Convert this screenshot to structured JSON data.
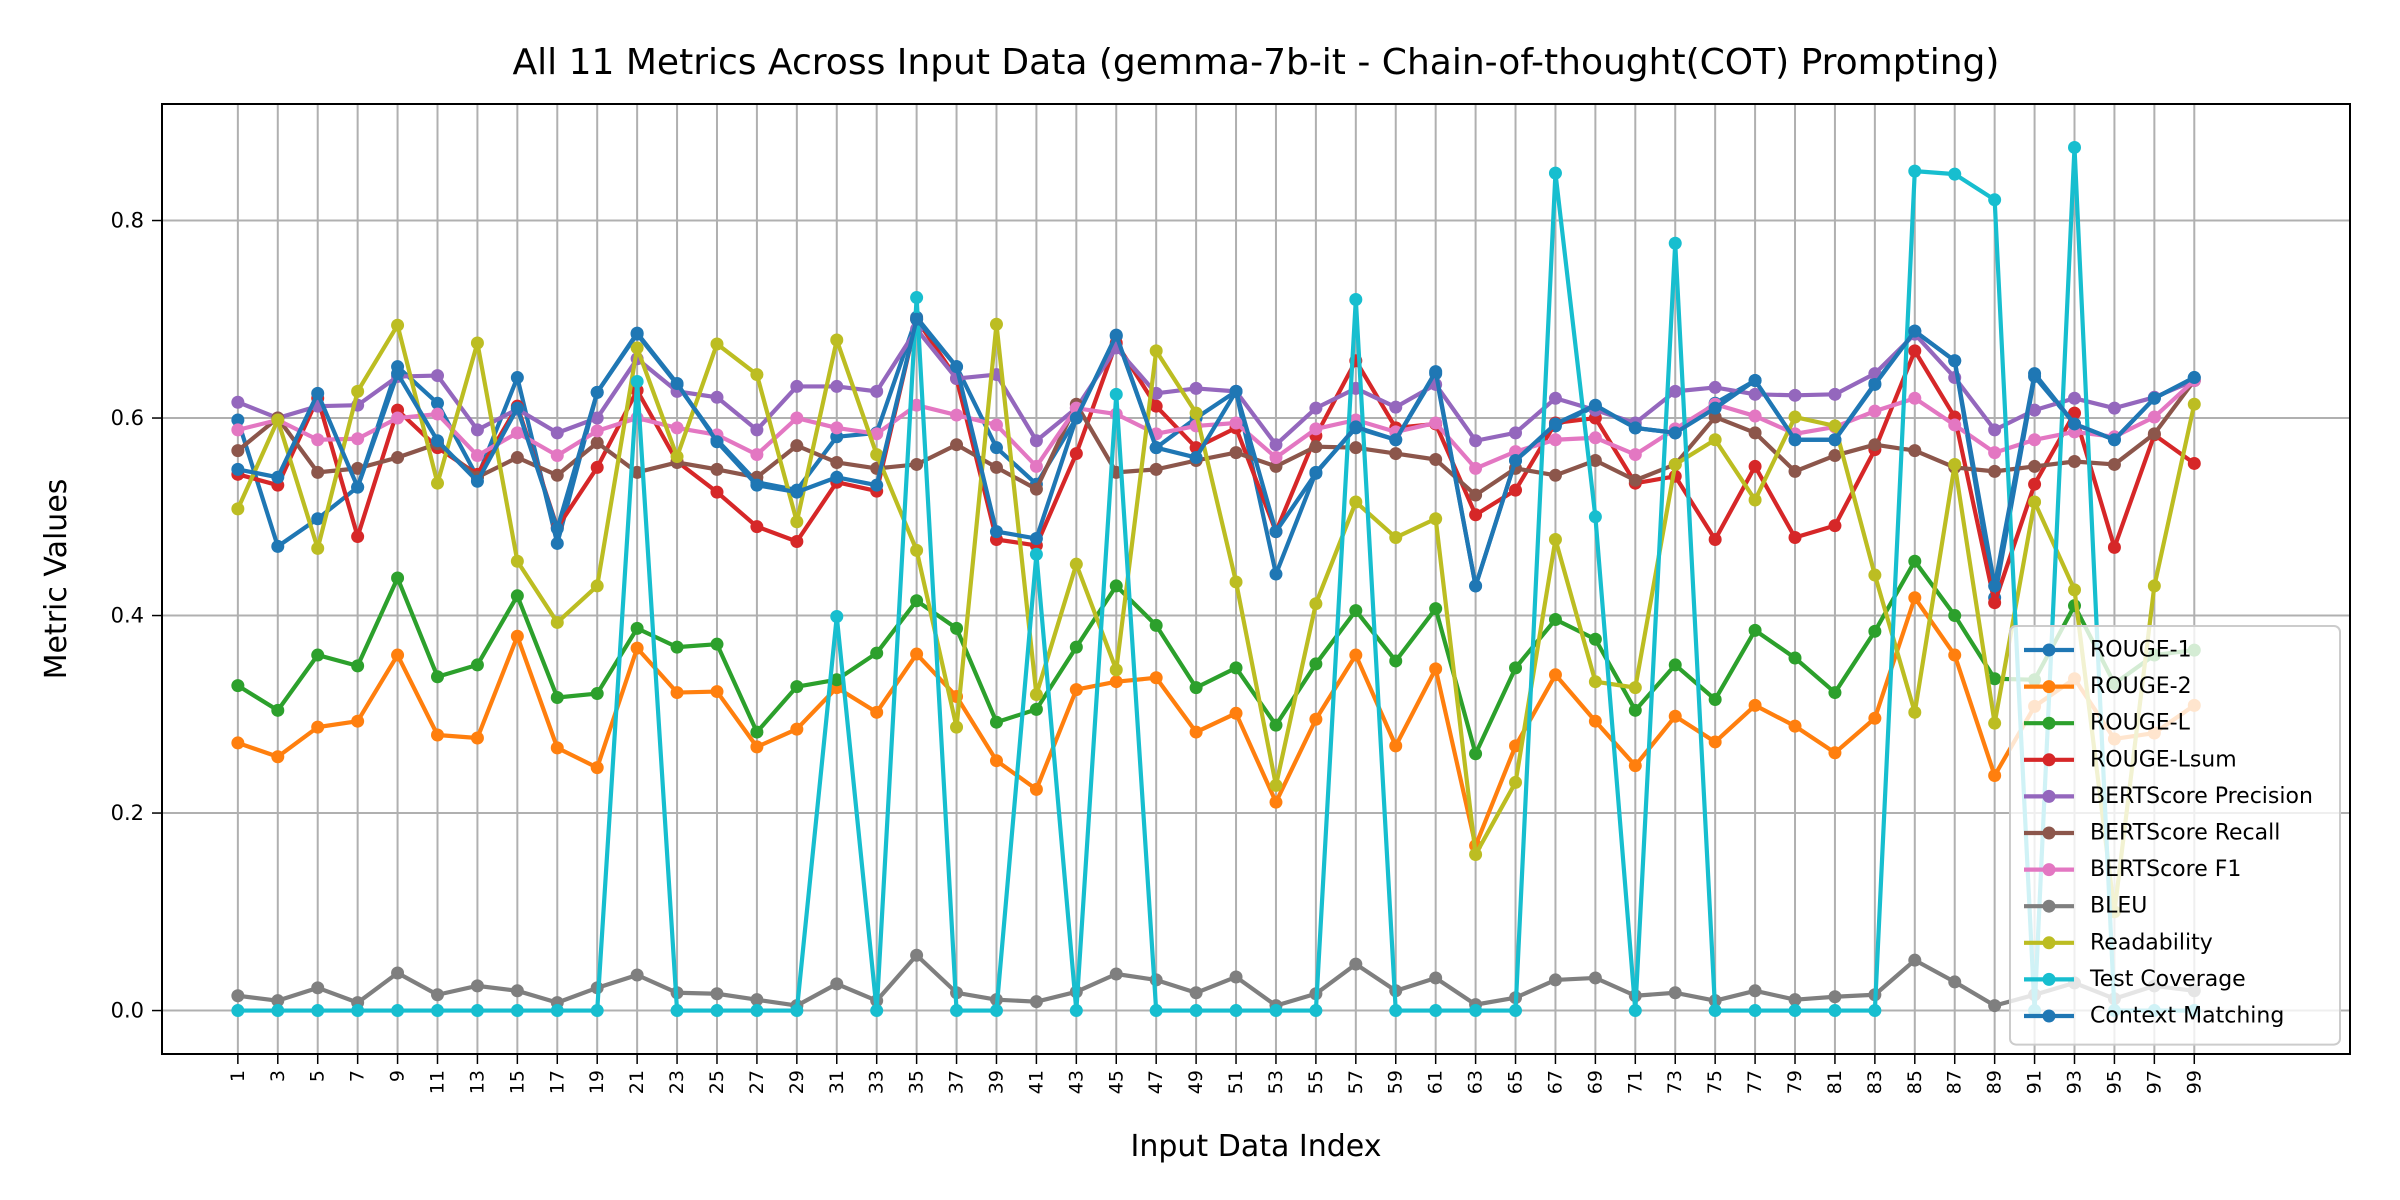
{
  "chart_data": {
    "type": "line",
    "title": "All 11 Metrics Across Input Data (gemma-7b-it - Chain-of-thought(COT) Prompting)",
    "xlabel": "Input Data Index",
    "ylabel": "Metric Values",
    "x": [
      1,
      3,
      5,
      7,
      9,
      11,
      13,
      15,
      17,
      19,
      21,
      23,
      25,
      27,
      29,
      31,
      33,
      35,
      37,
      39,
      41,
      43,
      45,
      47,
      49,
      51,
      53,
      55,
      57,
      59,
      61,
      63,
      65,
      67,
      69,
      71,
      73,
      75,
      77,
      79,
      81,
      83,
      85,
      87,
      89,
      91,
      93,
      95,
      97,
      99
    ],
    "x_tick_labels": [
      "1",
      "3",
      "5",
      "7",
      "9",
      "11",
      "13",
      "15",
      "17",
      "19",
      "21",
      "23",
      "25",
      "27",
      "29",
      "31",
      "33",
      "35",
      "37",
      "39",
      "41",
      "43",
      "45",
      "47",
      "49",
      "51",
      "53",
      "55",
      "57",
      "59",
      "61",
      "63",
      "65",
      "67",
      "69",
      "71",
      "73",
      "75",
      "77",
      "79",
      "81",
      "83",
      "85",
      "87",
      "89",
      "91",
      "93",
      "95",
      "97",
      "99"
    ],
    "y_ticks": [
      0.0,
      0.2,
      0.4,
      0.6,
      0.8
    ],
    "y_tick_labels": [
      "0.0",
      "0.2",
      "0.4",
      "0.6",
      "0.8"
    ],
    "xlim": [
      -2.8,
      106.8
    ],
    "ylim": [
      -0.044,
      0.918
    ],
    "grid": true,
    "legend_position": "lower-right",
    "series": [
      {
        "name": "ROUGE-1",
        "color": "#1f77b4",
        "values": [
          0.598,
          0.47,
          0.498,
          0.53,
          0.652,
          0.615,
          0.54,
          0.641,
          0.473,
          0.626,
          0.685,
          0.634,
          0.578,
          0.535,
          0.527,
          0.581,
          0.585,
          0.702,
          0.652,
          0.57,
          0.533,
          0.6,
          0.683,
          0.57,
          0.6,
          0.627,
          0.442,
          0.545,
          0.59,
          0.578,
          0.645,
          0.43,
          0.557,
          0.592,
          0.612,
          0.59,
          0.585,
          0.615,
          0.638,
          0.578,
          0.578,
          0.635,
          0.688,
          0.658,
          0.418,
          0.642,
          0.594,
          0.578,
          0.62,
          0.641
        ]
      },
      {
        "name": "ROUGE-2",
        "color": "#ff7f0e",
        "values": [
          0.271,
          0.257,
          0.287,
          0.293,
          0.36,
          0.279,
          0.276,
          0.379,
          0.266,
          0.246,
          0.367,
          0.322,
          0.323,
          0.267,
          0.285,
          0.327,
          0.302,
          0.361,
          0.318,
          0.253,
          0.224,
          0.325,
          0.333,
          0.337,
          0.282,
          0.301,
          0.211,
          0.295,
          0.36,
          0.268,
          0.346,
          0.167,
          0.268,
          0.34,
          0.293,
          0.248,
          0.298,
          0.272,
          0.309,
          0.288,
          0.261,
          0.296,
          0.418,
          0.36,
          0.238,
          0.308,
          0.336,
          0.275,
          0.281,
          0.309
        ]
      },
      {
        "name": "ROUGE-L",
        "color": "#2ca02c",
        "values": [
          0.329,
          0.304,
          0.36,
          0.349,
          0.438,
          0.338,
          0.35,
          0.42,
          0.317,
          0.321,
          0.387,
          0.368,
          0.371,
          0.282,
          0.328,
          0.335,
          0.362,
          0.415,
          0.387,
          0.292,
          0.305,
          0.368,
          0.43,
          0.39,
          0.327,
          0.347,
          0.289,
          0.351,
          0.405,
          0.354,
          0.407,
          0.26,
          0.347,
          0.396,
          0.376,
          0.304,
          0.35,
          0.315,
          0.385,
          0.357,
          0.322,
          0.384,
          0.455,
          0.4,
          0.336,
          0.335,
          0.41,
          0.331,
          0.36,
          0.365
        ]
      },
      {
        "name": "ROUGE-Lsum",
        "color": "#d62728",
        "values": [
          0.543,
          0.532,
          0.62,
          0.48,
          0.608,
          0.57,
          0.543,
          0.612,
          0.489,
          0.55,
          0.628,
          0.556,
          0.525,
          0.49,
          0.475,
          0.535,
          0.526,
          0.7,
          0.64,
          0.477,
          0.471,
          0.564,
          0.676,
          0.612,
          0.57,
          0.59,
          0.485,
          0.582,
          0.658,
          0.59,
          0.594,
          0.502,
          0.527,
          0.595,
          0.6,
          0.534,
          0.541,
          0.477,
          0.551,
          0.479,
          0.491,
          0.568,
          0.668,
          0.601,
          0.413,
          0.533,
          0.605,
          0.469,
          0.583,
          0.554
        ]
      },
      {
        "name": "BERTScore Precision",
        "color": "#9467bd",
        "values": [
          0.616,
          0.6,
          0.612,
          0.613,
          0.642,
          0.643,
          0.588,
          0.609,
          0.585,
          0.6,
          0.66,
          0.627,
          0.621,
          0.588,
          0.632,
          0.632,
          0.627,
          0.69,
          0.64,
          0.644,
          0.577,
          0.61,
          0.671,
          0.625,
          0.63,
          0.627,
          0.573,
          0.61,
          0.63,
          0.611,
          0.634,
          0.577,
          0.585,
          0.62,
          0.608,
          0.595,
          0.627,
          0.631,
          0.624,
          0.623,
          0.624,
          0.645,
          0.685,
          0.641,
          0.588,
          0.608,
          0.62,
          0.61,
          0.621,
          0.638
        ]
      },
      {
        "name": "BERTScore Recall",
        "color": "#8c564b",
        "values": [
          0.567,
          0.6,
          0.545,
          0.549,
          0.56,
          0.574,
          0.54,
          0.56,
          0.542,
          0.575,
          0.545,
          0.555,
          0.548,
          0.54,
          0.572,
          0.555,
          0.549,
          0.553,
          0.573,
          0.55,
          0.528,
          0.614,
          0.545,
          0.548,
          0.557,
          0.565,
          0.551,
          0.571,
          0.57,
          0.564,
          0.558,
          0.522,
          0.549,
          0.542,
          0.557,
          0.537,
          0.553,
          0.601,
          0.585,
          0.546,
          0.562,
          0.573,
          0.567,
          0.55,
          0.546,
          0.551,
          0.556,
          0.553,
          0.584,
          0.638
        ]
      },
      {
        "name": "BERTScore F1",
        "color": "#e377c2",
        "values": [
          0.588,
          0.598,
          0.578,
          0.579,
          0.6,
          0.604,
          0.562,
          0.585,
          0.562,
          0.587,
          0.6,
          0.59,
          0.583,
          0.563,
          0.6,
          0.59,
          0.584,
          0.613,
          0.603,
          0.593,
          0.551,
          0.61,
          0.604,
          0.584,
          0.592,
          0.595,
          0.56,
          0.589,
          0.598,
          0.586,
          0.595,
          0.549,
          0.566,
          0.578,
          0.58,
          0.563,
          0.589,
          0.614,
          0.602,
          0.584,
          0.591,
          0.607,
          0.62,
          0.593,
          0.565,
          0.578,
          0.586,
          0.581,
          0.601,
          0.638
        ]
      },
      {
        "name": "BLEU",
        "color": "#7f7f7f",
        "values": [
          0.015,
          0.01,
          0.023,
          0.008,
          0.038,
          0.016,
          0.025,
          0.02,
          0.008,
          0.023,
          0.036,
          0.018,
          0.017,
          0.011,
          0.005,
          0.027,
          0.01,
          0.056,
          0.018,
          0.011,
          0.009,
          0.019,
          0.037,
          0.031,
          0.018,
          0.034,
          0.005,
          0.017,
          0.047,
          0.02,
          0.033,
          0.006,
          0.013,
          0.031,
          0.033,
          0.015,
          0.018,
          0.01,
          0.02,
          0.011,
          0.014,
          0.016,
          0.051,
          0.029,
          0.005,
          0.016,
          0.028,
          0.012,
          0.025,
          0.02
        ]
      },
      {
        "name": "Readability",
        "color": "#bcbd22",
        "values": [
          0.508,
          0.598,
          0.468,
          0.627,
          0.694,
          0.534,
          0.676,
          0.455,
          0.393,
          0.43,
          0.671,
          0.561,
          0.675,
          0.644,
          0.495,
          0.679,
          0.563,
          0.466,
          0.287,
          0.695,
          0.32,
          0.452,
          0.345,
          0.668,
          0.605,
          0.434,
          0.228,
          0.412,
          0.515,
          0.479,
          0.498,
          0.158,
          0.231,
          0.477,
          0.333,
          0.327,
          0.553,
          0.578,
          0.517,
          0.601,
          0.592,
          0.441,
          0.302,
          0.553,
          0.291,
          0.515,
          0.426,
          0.1,
          0.43,
          0.614
        ]
      },
      {
        "name": "Test Coverage",
        "color": "#17becf",
        "values": [
          0.0,
          0.0,
          0.0,
          0.0,
          0.0,
          0.0,
          0.0,
          0.0,
          0.0,
          0.0,
          0.637,
          0.0,
          0.0,
          0.0,
          0.0,
          0.399,
          0.0,
          0.722,
          0.0,
          0.0,
          0.462,
          0.0,
          0.624,
          0.0,
          0.0,
          0.0,
          0.0,
          0.0,
          0.72,
          0.0,
          0.0,
          0.0,
          0.0,
          0.848,
          0.5,
          0.0,
          0.777,
          0.0,
          0.0,
          0.0,
          0.0,
          0.0,
          0.85,
          0.847,
          0.821,
          0.0,
          0.874,
          0.0,
          0.0,
          0.0
        ]
      },
      {
        "name": "Context Matching",
        "color": "#1f77b4",
        "values": [
          0.548,
          0.54,
          0.625,
          0.53,
          0.645,
          0.577,
          0.536,
          0.61,
          0.488,
          0.626,
          0.686,
          0.635,
          0.576,
          0.532,
          0.525,
          0.54,
          0.532,
          0.7,
          0.652,
          0.485,
          0.478,
          0.6,
          0.684,
          0.57,
          0.56,
          0.627,
          0.485,
          0.544,
          0.591,
          0.578,
          0.647,
          0.43,
          0.557,
          0.594,
          0.613,
          0.59,
          0.585,
          0.61,
          0.638,
          0.578,
          0.578,
          0.634,
          0.688,
          0.658,
          0.43,
          0.645,
          0.594,
          0.578,
          0.62,
          0.641
        ]
      }
    ]
  }
}
